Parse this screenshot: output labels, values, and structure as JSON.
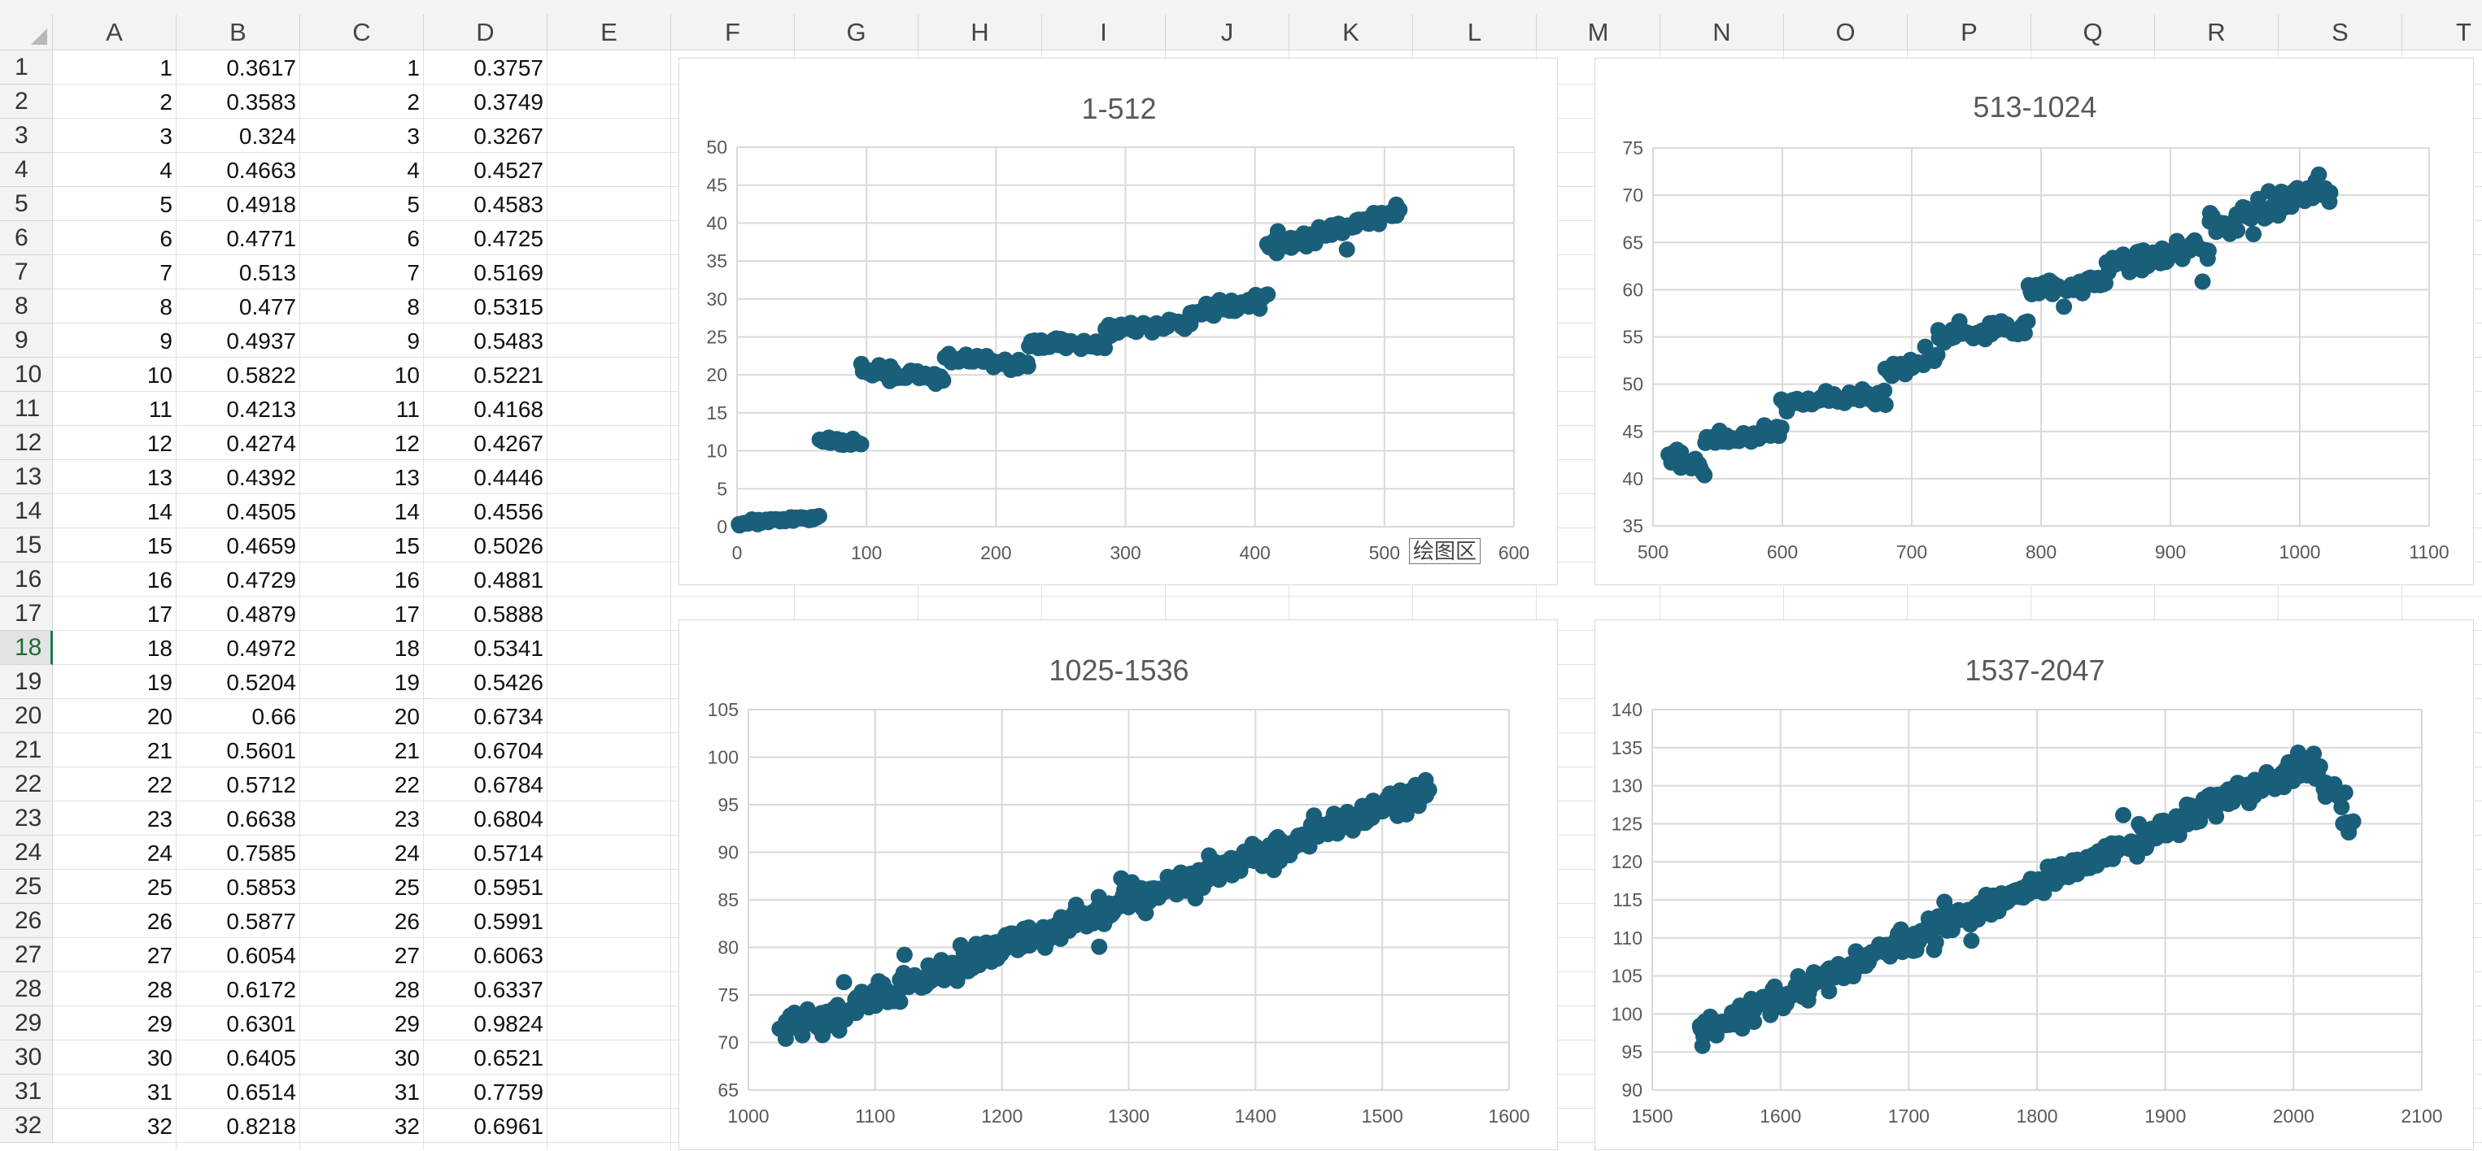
{
  "spreadsheet": {
    "columns": [
      "A",
      "B",
      "C",
      "D",
      "E",
      "F",
      "G",
      "H",
      "I",
      "J",
      "K",
      "L",
      "M",
      "N",
      "O",
      "P",
      "Q",
      "R",
      "S",
      "T"
    ],
    "active_row": 18,
    "rows": [
      {
        "n": 1,
        "a": "1",
        "b": "0.3617",
        "c": "1",
        "d": "0.3757"
      },
      {
        "n": 2,
        "a": "2",
        "b": "0.3583",
        "c": "2",
        "d": "0.3749"
      },
      {
        "n": 3,
        "a": "3",
        "b": "0.324",
        "c": "3",
        "d": "0.3267"
      },
      {
        "n": 4,
        "a": "4",
        "b": "0.4663",
        "c": "4",
        "d": "0.4527"
      },
      {
        "n": 5,
        "a": "5",
        "b": "0.4918",
        "c": "5",
        "d": "0.4583"
      },
      {
        "n": 6,
        "a": "6",
        "b": "0.4771",
        "c": "6",
        "d": "0.4725"
      },
      {
        "n": 7,
        "a": "7",
        "b": "0.513",
        "c": "7",
        "d": "0.5169"
      },
      {
        "n": 8,
        "a": "8",
        "b": "0.477",
        "c": "8",
        "d": "0.5315"
      },
      {
        "n": 9,
        "a": "9",
        "b": "0.4937",
        "c": "9",
        "d": "0.5483"
      },
      {
        "n": 10,
        "a": "10",
        "b": "0.5822",
        "c": "10",
        "d": "0.5221"
      },
      {
        "n": 11,
        "a": "11",
        "b": "0.4213",
        "c": "11",
        "d": "0.4168"
      },
      {
        "n": 12,
        "a": "12",
        "b": "0.4274",
        "c": "12",
        "d": "0.4267"
      },
      {
        "n": 13,
        "a": "13",
        "b": "0.4392",
        "c": "13",
        "d": "0.4446"
      },
      {
        "n": 14,
        "a": "14",
        "b": "0.4505",
        "c": "14",
        "d": "0.4556"
      },
      {
        "n": 15,
        "a": "15",
        "b": "0.4659",
        "c": "15",
        "d": "0.5026"
      },
      {
        "n": 16,
        "a": "16",
        "b": "0.4729",
        "c": "16",
        "d": "0.4881"
      },
      {
        "n": 17,
        "a": "17",
        "b": "0.4879",
        "c": "17",
        "d": "0.5888"
      },
      {
        "n": 18,
        "a": "18",
        "b": "0.4972",
        "c": "18",
        "d": "0.5341"
      },
      {
        "n": 19,
        "a": "19",
        "b": "0.5204",
        "c": "19",
        "d": "0.5426"
      },
      {
        "n": 20,
        "a": "20",
        "b": "0.66",
        "c": "20",
        "d": "0.6734"
      },
      {
        "n": 21,
        "a": "21",
        "b": "0.5601",
        "c": "21",
        "d": "0.6704"
      },
      {
        "n": 22,
        "a": "22",
        "b": "0.5712",
        "c": "22",
        "d": "0.6784"
      },
      {
        "n": 23,
        "a": "23",
        "b": "0.6638",
        "c": "23",
        "d": "0.6804"
      },
      {
        "n": 24,
        "a": "24",
        "b": "0.7585",
        "c": "24",
        "d": "0.5714"
      },
      {
        "n": 25,
        "a": "25",
        "b": "0.5853",
        "c": "25",
        "d": "0.5951"
      },
      {
        "n": 26,
        "a": "26",
        "b": "0.5877",
        "c": "26",
        "d": "0.5991"
      },
      {
        "n": 27,
        "a": "27",
        "b": "0.6054",
        "c": "27",
        "d": "0.6063"
      },
      {
        "n": 28,
        "a": "28",
        "b": "0.6172",
        "c": "28",
        "d": "0.6337"
      },
      {
        "n": 29,
        "a": "29",
        "b": "0.6301",
        "c": "29",
        "d": "0.9824"
      },
      {
        "n": 30,
        "a": "30",
        "b": "0.6405",
        "c": "30",
        "d": "0.6521"
      },
      {
        "n": 31,
        "a": "31",
        "b": "0.6514",
        "c": "31",
        "d": "0.7759"
      },
      {
        "n": 32,
        "a": "32",
        "b": "0.8218",
        "c": "32",
        "d": "0.6961"
      }
    ]
  },
  "chart_tooltip": "绘图区",
  "chart_data": [
    {
      "type": "scatter",
      "title": "1-512",
      "marker_color": "#1a5f7a",
      "xlim": [
        0,
        600
      ],
      "ylim": [
        0,
        50
      ],
      "xticks": [
        0,
        100,
        200,
        300,
        400,
        500,
        600
      ],
      "yticks": [
        0,
        5,
        10,
        15,
        20,
        25,
        30,
        35,
        40,
        45,
        50
      ],
      "segments": [
        {
          "x0": 1,
          "x1": 63,
          "y0": 0.4,
          "y1": 1.3,
          "noise": 0.3,
          "n": 50
        },
        {
          "x0": 63,
          "x1": 96,
          "y0": 11.5,
          "y1": 11.0,
          "noise": 0.4,
          "n": 24
        },
        {
          "x0": 96,
          "x1": 160,
          "y0": 20.5,
          "y1": 19.5,
          "noise": 0.8,
          "n": 40
        },
        {
          "x0": 160,
          "x1": 225,
          "y0": 22.3,
          "y1": 21.3,
          "noise": 0.7,
          "n": 40
        },
        {
          "x0": 225,
          "x1": 285,
          "y0": 24.2,
          "y1": 24.0,
          "noise": 0.8,
          "n": 36
        },
        {
          "x0": 285,
          "x1": 350,
          "y0": 26.0,
          "y1": 27.0,
          "noise": 0.8,
          "n": 40
        },
        {
          "x0": 350,
          "x1": 410,
          "y0": 28.2,
          "y1": 30.0,
          "noise": 0.9,
          "n": 36
        },
        {
          "x0": 410,
          "x1": 512,
          "y0": 36.5,
          "y1": 41.5,
          "noise": 1.1,
          "n": 60
        }
      ]
    },
    {
      "type": "scatter",
      "title": "513-1024",
      "marker_color": "#1a5f7a",
      "xlim": [
        500,
        1100
      ],
      "ylim": [
        35,
        75
      ],
      "xticks": [
        500,
        600,
        700,
        800,
        900,
        1000,
        1100
      ],
      "yticks": [
        35,
        40,
        45,
        50,
        55,
        60,
        65,
        70,
        75
      ],
      "segments": [
        {
          "x0": 513,
          "x1": 540,
          "y0": 42.5,
          "y1": 41.0,
          "noise": 0.9,
          "n": 18
        },
        {
          "x0": 540,
          "x1": 600,
          "y0": 44.0,
          "y1": 45.2,
          "noise": 0.7,
          "n": 36
        },
        {
          "x0": 600,
          "x1": 680,
          "y0": 48.0,
          "y1": 49.0,
          "noise": 0.9,
          "n": 45
        },
        {
          "x0": 680,
          "x1": 720,
          "y0": 51.5,
          "y1": 53.0,
          "noise": 1.0,
          "n": 24
        },
        {
          "x0": 720,
          "x1": 790,
          "y0": 55.0,
          "y1": 56.0,
          "noise": 0.9,
          "n": 40
        },
        {
          "x0": 790,
          "x1": 850,
          "y0": 60.0,
          "y1": 60.5,
          "noise": 1.0,
          "n": 36
        },
        {
          "x0": 850,
          "x1": 930,
          "y0": 62.5,
          "y1": 64.5,
          "noise": 1.4,
          "n": 45
        },
        {
          "x0": 930,
          "x1": 1024,
          "y0": 66.5,
          "y1": 71.0,
          "noise": 1.4,
          "n": 55
        }
      ]
    },
    {
      "type": "scatter",
      "title": "1025-1536",
      "marker_color": "#1a5f7a",
      "xlim": [
        1000,
        1600
      ],
      "ylim": [
        65,
        105
      ],
      "xticks": [
        1000,
        1100,
        1200,
        1300,
        1400,
        1500,
        1600
      ],
      "yticks": [
        65,
        70,
        75,
        80,
        85,
        90,
        95,
        100,
        105
      ],
      "segments": [
        {
          "x0": 1025,
          "x1": 1536,
          "y0": 71.0,
          "y1": 96.5,
          "noise": 1.4,
          "n": 420
        }
      ]
    },
    {
      "type": "scatter",
      "title": "1537-2047",
      "marker_color": "#1a5f7a",
      "xlim": [
        1500,
        2100
      ],
      "ylim": [
        90,
        140
      ],
      "xticks": [
        1500,
        1600,
        1700,
        1800,
        1900,
        2000,
        2100
      ],
      "yticks": [
        90,
        95,
        100,
        105,
        110,
        115,
        120,
        125,
        130,
        135,
        140
      ],
      "segments": [
        {
          "x0": 1537,
          "x1": 2015,
          "y0": 97.5,
          "y1": 133.0,
          "noise": 1.6,
          "n": 390
        },
        {
          "x0": 2015,
          "x1": 2047,
          "y0": 133.0,
          "y1": 124.0,
          "noise": 2.2,
          "n": 22
        }
      ]
    }
  ]
}
